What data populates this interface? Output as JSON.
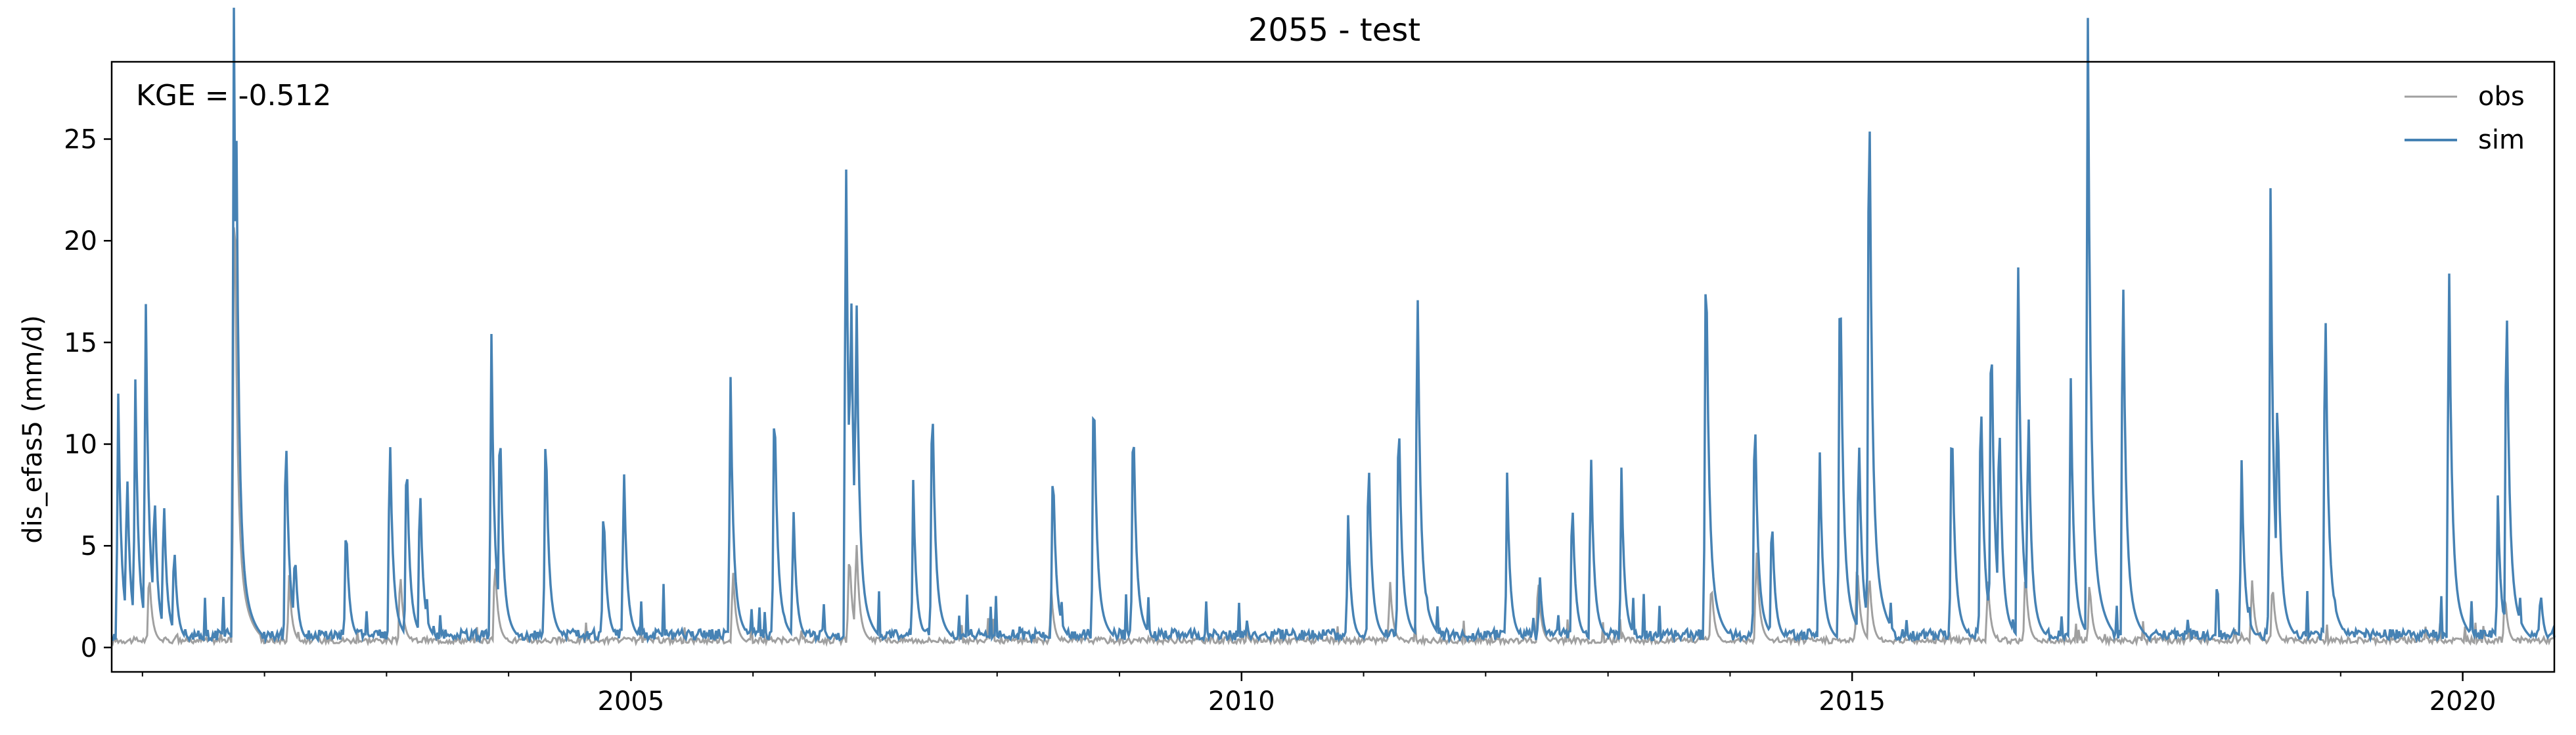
{
  "chart_data": {
    "type": "line",
    "title": "2055 - test",
    "xlabel": "",
    "ylabel": "dis_efas5 (mm/d)",
    "annotation": "KGE = -0.512",
    "legend_position": "top-right",
    "grid": false,
    "xlim": [
      "2000-10-01",
      "2020-10-01"
    ],
    "ylim": [
      -1.2,
      28.8
    ],
    "y_ticks": [
      0,
      5,
      10,
      15,
      20,
      25
    ],
    "x_ticks": [
      {
        "date": "2005-01-01",
        "label": "2005"
      },
      {
        "date": "2010-01-01",
        "label": "2010"
      },
      {
        "date": "2015-01-01",
        "label": "2015"
      },
      {
        "date": "2020-01-01",
        "label": "2020"
      }
    ],
    "series": [
      {
        "name": "obs",
        "color": "#a0a0a0",
        "peaks": [
          [
            "2001-10-02",
            22.8
          ],
          [
            "2001-01-20",
            3.5
          ],
          [
            "2002-03-15",
            3.0
          ],
          [
            "2003-02-10",
            3.5
          ],
          [
            "2003-11-20",
            4.0
          ],
          [
            "2005-11-01",
            3.5
          ],
          [
            "2006-10-15",
            4.5
          ],
          [
            "2006-11-05",
            5.0
          ],
          [
            "2008-06-10",
            2.5
          ],
          [
            "2011-03-20",
            3.0
          ],
          [
            "2012-06-05",
            3.2
          ],
          [
            "2013-11-05",
            3.0
          ],
          [
            "2014-03-20",
            4.5
          ],
          [
            "2015-01-15",
            4.0
          ],
          [
            "2015-02-20",
            3.5
          ],
          [
            "2016-02-10",
            3.0
          ],
          [
            "2016-06-01",
            3.5
          ],
          [
            "2016-12-10",
            3.0
          ],
          [
            "2018-04-10",
            3.0
          ],
          [
            "2018-06-10",
            3.0
          ],
          [
            "2020-05-05",
            2.5
          ]
        ]
      },
      {
        "name": "sim",
        "color": "#4682b4",
        "peaks": [
          [
            "2000-10-20",
            10.7
          ],
          [
            "2000-11-15",
            8.2
          ],
          [
            "2000-12-10",
            11.4
          ],
          [
            "2001-01-10",
            15.3
          ],
          [
            "2001-02-05",
            7.4
          ],
          [
            "2001-03-05",
            6.9
          ],
          [
            "2001-04-05",
            4.8
          ],
          [
            "2001-10-01",
            26.4
          ],
          [
            "2001-10-08",
            22.9
          ],
          [
            "2002-03-05",
            10.2
          ],
          [
            "2002-04-01",
            4.5
          ],
          [
            "2002-09-01",
            5.8
          ],
          [
            "2003-01-10",
            9.8
          ],
          [
            "2003-03-01",
            9.2
          ],
          [
            "2003-04-10",
            7.6
          ],
          [
            "2003-11-10",
            13.2
          ],
          [
            "2003-12-05",
            10.9
          ],
          [
            "2004-04-20",
            10.2
          ],
          [
            "2004-10-10",
            6.6
          ],
          [
            "2004-12-10",
            8.0
          ],
          [
            "2005-10-25",
            11.6
          ],
          [
            "2006-03-05",
            11.8
          ],
          [
            "2006-05-01",
            6.2
          ],
          [
            "2006-10-05",
            22.3
          ],
          [
            "2006-10-20",
            17.3
          ],
          [
            "2006-11-05",
            16.7
          ],
          [
            "2007-04-25",
            6.6
          ],
          [
            "2007-06-20",
            12.0
          ],
          [
            "2008-06-15",
            8.6
          ],
          [
            "2008-10-15",
            12.6
          ],
          [
            "2009-02-10",
            11.0
          ],
          [
            "2010-11-15",
            5.6
          ],
          [
            "2011-01-15",
            9.0
          ],
          [
            "2011-04-15",
            11.2
          ],
          [
            "2011-06-10",
            16.8
          ],
          [
            "2012-03-05",
            7.0
          ],
          [
            "2012-06-10",
            3.2
          ],
          [
            "2012-09-15",
            7.0
          ],
          [
            "2012-11-10",
            8.8
          ],
          [
            "2013-02-10",
            7.1
          ],
          [
            "2013-10-20",
            18.9
          ],
          [
            "2014-03-15",
            11.3
          ],
          [
            "2014-05-05",
            6.2
          ],
          [
            "2014-09-25",
            8.9
          ],
          [
            "2014-11-25",
            18.2
          ],
          [
            "2015-01-20",
            10.0
          ],
          [
            "2015-02-20",
            27.0
          ],
          [
            "2015-10-25",
            11.0
          ],
          [
            "2016-01-20",
            12.1
          ],
          [
            "2016-02-20",
            15.5
          ],
          [
            "2016-03-15",
            11.0
          ],
          [
            "2016-05-10",
            18.0
          ],
          [
            "2016-06-10",
            11.3
          ],
          [
            "2016-10-15",
            11.7
          ],
          [
            "2016-12-05",
            27.6
          ],
          [
            "2017-03-20",
            17.6
          ],
          [
            "2018-03-10",
            8.0
          ],
          [
            "2018-06-05",
            18.5
          ],
          [
            "2018-06-25",
            11.8
          ],
          [
            "2018-11-15",
            16.2
          ],
          [
            "2019-11-20",
            17.5
          ],
          [
            "2020-04-15",
            6.0
          ],
          [
            "2020-05-10",
            16.8
          ],
          [
            "2020-08-20",
            2.6
          ]
        ]
      }
    ]
  }
}
